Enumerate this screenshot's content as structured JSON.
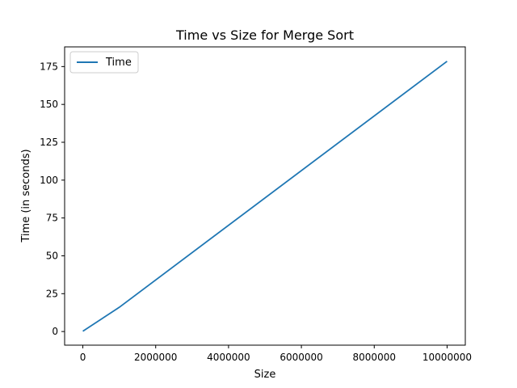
{
  "chart_data": {
    "type": "line",
    "title": "Time vs Size for Merge Sort",
    "xlabel": "Size",
    "ylabel": "Time (in seconds)",
    "xlim": [
      -500000,
      10500000
    ],
    "ylim": [
      -9,
      188
    ],
    "x_ticks": [
      0,
      2000000,
      4000000,
      6000000,
      8000000,
      10000000
    ],
    "x_tick_labels": [
      "0",
      "2000000",
      "4000000",
      "6000000",
      "8000000",
      "10000000"
    ],
    "y_ticks": [
      0,
      25,
      50,
      75,
      100,
      125,
      150,
      175
    ],
    "y_tick_labels": [
      "0",
      "25",
      "50",
      "75",
      "100",
      "125",
      "150",
      "175"
    ],
    "grid": false,
    "legend_position": "top-left",
    "series": [
      {
        "name": "Time",
        "color": "#1f77b4",
        "x": [
          0,
          1000000,
          10000000
        ],
        "values": [
          0.2,
          16,
          178.5
        ]
      }
    ]
  }
}
